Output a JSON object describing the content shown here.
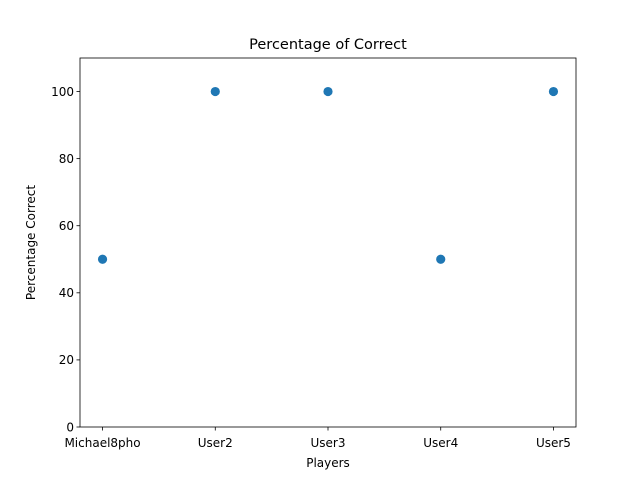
{
  "chart_data": {
    "type": "scatter",
    "title": "Percentage of Correct",
    "xlabel": "Players",
    "ylabel": "Percentage Correct",
    "categories": [
      "Michael8pho",
      "User2",
      "User3",
      "User4",
      "User5"
    ],
    "values": [
      50,
      100,
      100,
      50,
      100
    ],
    "ylim": [
      0,
      110
    ],
    "yticks": [
      0,
      20,
      40,
      60,
      80,
      100
    ],
    "ytick_labels": [
      "0",
      "20",
      "40",
      "60",
      "80",
      "100"
    ],
    "grid": false,
    "legend": "none",
    "colors": {
      "marker": "#1f77b4",
      "axes": "#000000",
      "background": "#ffffff"
    }
  }
}
